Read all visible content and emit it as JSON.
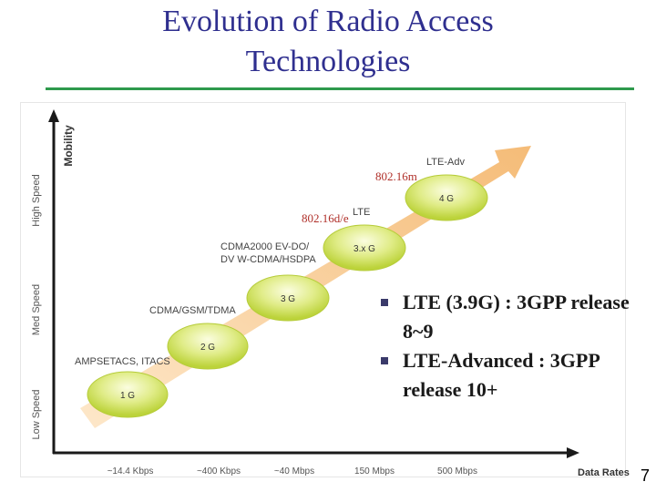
{
  "title": {
    "line1": "Evolution of Radio Access",
    "line2": "Technologies"
  },
  "colors": {
    "title": "#2f2f8f",
    "rule": "#2e9a4c",
    "arrow": "#f5b870",
    "axis": "#1a1a1a",
    "bubble": "#c9e04a"
  },
  "axes": {
    "y_title": "Mobility",
    "y_levels": [
      "High Speed",
      "Med Speed",
      "Low Speed"
    ],
    "x_title": "Data Rates",
    "x_ticks": [
      "~14.4 Kbps",
      "~400 Kbps",
      "~40 Mbps",
      "150 Mbps",
      "500 Mbps"
    ]
  },
  "generations": [
    {
      "name": "1 G",
      "caption": "AMPSETACS, ITACS"
    },
    {
      "name": "2 G",
      "caption": "CDMA/GSM/TDMA"
    },
    {
      "name": "3 G",
      "caption": "CDMA2000 EV-DO/ DV W-CDMA/HSDPA"
    },
    {
      "name": "3.x G",
      "caption": "LTE"
    },
    {
      "name": "4 G",
      "caption": "LTE-Adv"
    }
  ],
  "wimax_labels": {
    "a": "802.16m",
    "b": "802.16d/e"
  },
  "bullets": [
    "LTE (3.9G) : 3GPP release 8~9",
    "LTE-Advanced : 3GPP release 10+"
  ],
  "page_number": "7"
}
